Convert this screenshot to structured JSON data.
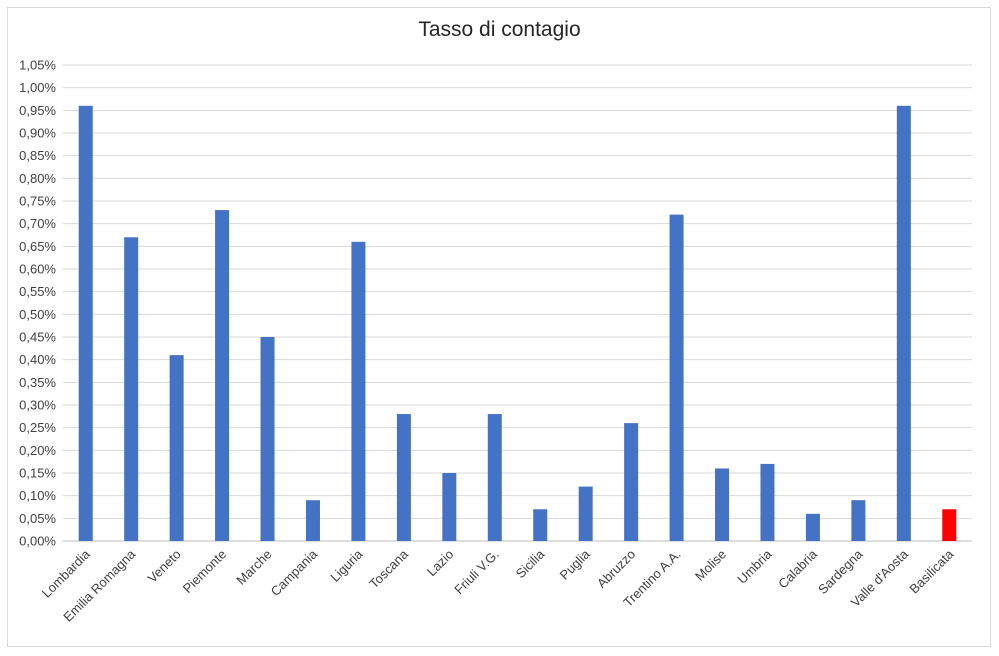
{
  "chart_data": {
    "type": "bar",
    "title": "Tasso di contagio",
    "xlabel": "",
    "ylabel": "",
    "categories": [
      "Lombardia",
      "Emilia Romagna",
      "Veneto",
      "Piemonte",
      "Marche",
      "Campania",
      "Liguria",
      "Toscana",
      "Lazio",
      "Friuli V.G.",
      "Sicilia",
      "Puglia",
      "Abruzzo",
      "Trentino A.A.",
      "Molise",
      "Umbria",
      "Calabria",
      "Sardegna",
      "Valle d'Aosta",
      "Basilicata"
    ],
    "values": [
      0.96,
      0.67,
      0.41,
      0.73,
      0.45,
      0.09,
      0.66,
      0.28,
      0.15,
      0.28,
      0.07,
      0.12,
      0.26,
      0.72,
      0.16,
      0.17,
      0.06,
      0.09,
      0.96,
      0.07
    ],
    "y_unit": "%",
    "ylim": [
      0,
      1.05
    ],
    "y_ticks": [
      "0,00%",
      "0,05%",
      "0,10%",
      "0,15%",
      "0,20%",
      "0,25%",
      "0,30%",
      "0,35%",
      "0,40%",
      "0,45%",
      "0,50%",
      "0,55%",
      "0,60%",
      "0,65%",
      "0,70%",
      "0,75%",
      "0,80%",
      "0,85%",
      "0,90%",
      "0,95%",
      "1,00%",
      "1,05%"
    ],
    "grid": true,
    "legend": "none",
    "colors": {
      "bar": "#4472c4",
      "highlight": "#ff0000",
      "grid": "#d9d9d9",
      "text": "#404040"
    },
    "highlight_category": "Basilicata"
  }
}
